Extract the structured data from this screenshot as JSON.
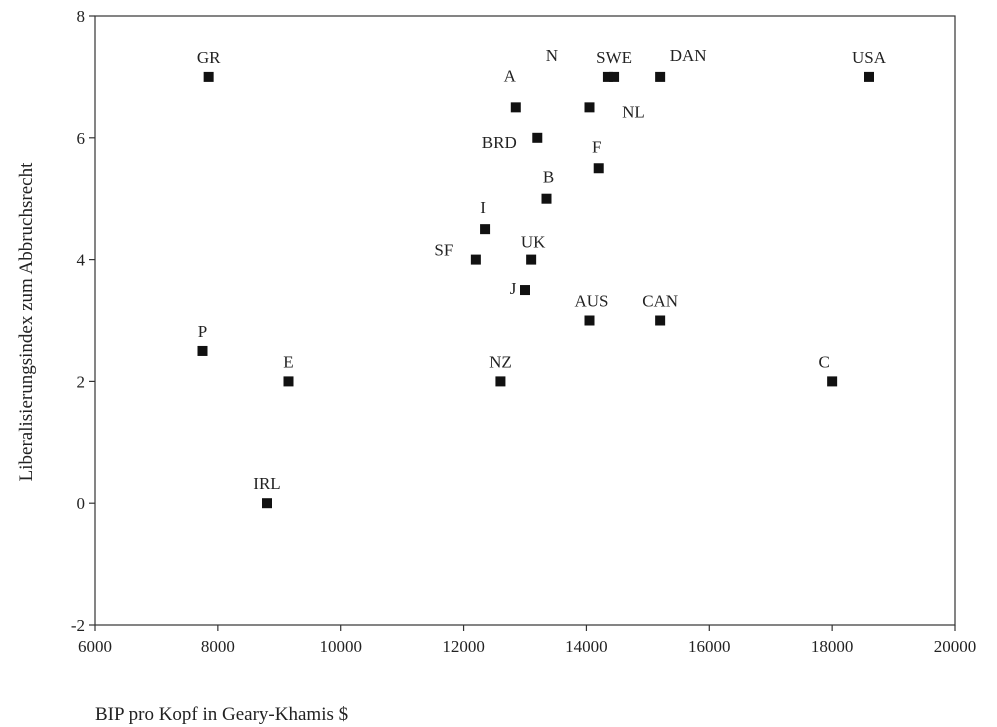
{
  "chart_data": {
    "type": "scatter",
    "xlabel": "BIP pro Kopf in Geary-Khamis $",
    "ylabel": "Liberalisierungsindex zum Abbruchsrecht",
    "xlim": [
      6000,
      20000
    ],
    "ylim": [
      -2,
      8
    ],
    "xticks": [
      "6000",
      "8000",
      "10000",
      "12000",
      "14000",
      "16000",
      "18000",
      "20000"
    ],
    "yticks": [
      "-2",
      "0",
      "2",
      "4",
      "6",
      "8"
    ],
    "grid": false,
    "points": [
      {
        "label": "GR",
        "x": 7850,
        "y": 7
      },
      {
        "label": "USA",
        "x": 18600,
        "y": 7
      },
      {
        "label": "N",
        "x": 14350,
        "y": 7
      },
      {
        "label": "SWE",
        "x": 14450,
        "y": 7
      },
      {
        "label": "DAN",
        "x": 15200,
        "y": 7
      },
      {
        "label": "A",
        "x": 12850,
        "y": 6.5
      },
      {
        "label": "NL",
        "x": 14050,
        "y": 6.5
      },
      {
        "label": "BRD",
        "x": 13200,
        "y": 6
      },
      {
        "label": "F",
        "x": 14200,
        "y": 5.5
      },
      {
        "label": "B",
        "x": 13350,
        "y": 5
      },
      {
        "label": "I",
        "x": 12350,
        "y": 4.5
      },
      {
        "label": "SF",
        "x": 12200,
        "y": 4
      },
      {
        "label": "UK",
        "x": 13100,
        "y": 4
      },
      {
        "label": "J",
        "x": 13000,
        "y": 3.5
      },
      {
        "label": "AUS",
        "x": 14050,
        "y": 3
      },
      {
        "label": "CAN",
        "x": 15200,
        "y": 3
      },
      {
        "label": "P",
        "x": 7750,
        "y": 2.5
      },
      {
        "label": "E",
        "x": 9150,
        "y": 2
      },
      {
        "label": "NZ",
        "x": 12600,
        "y": 2
      },
      {
        "label": "C",
        "x": 18000,
        "y": 2
      },
      {
        "label": "IRL",
        "x": 8800,
        "y": 0
      }
    ]
  }
}
